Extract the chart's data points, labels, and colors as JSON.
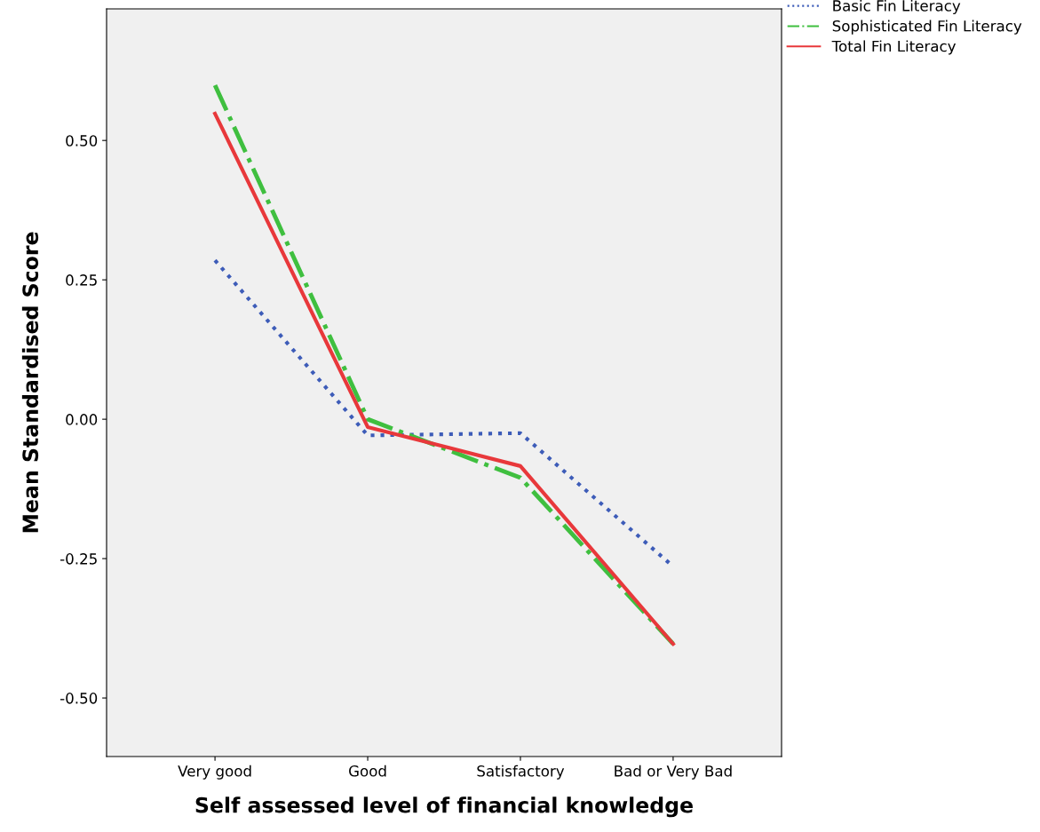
{
  "chart_data": {
    "type": "line",
    "xlabel": "Self assessed level of financial knowledge",
    "ylabel": "Mean Standardised Score",
    "categories": [
      "Very good",
      "Good",
      "Satisfactory",
      "Bad or Very Bad"
    ],
    "series": [
      {
        "name": "Basic Fin Literacy",
        "color": "#3d5cb8",
        "line_style": "dotted",
        "values": [
          0.285,
          -0.029,
          -0.025,
          -0.264
        ]
      },
      {
        "name": "Sophisticated Fin Literacy",
        "color": "#3fbf3f",
        "line_style": "dashdot",
        "values": [
          0.599,
          0.0,
          -0.105,
          -0.403
        ]
      },
      {
        "name": "Total Fin Literacy",
        "color": "#e8383b",
        "line_style": "solid",
        "values": [
          0.548,
          -0.014,
          -0.084,
          -0.403
        ]
      }
    ],
    "ylim": [
      -0.605,
      0.736
    ],
    "yticks": [
      {
        "value": -0.5,
        "label": "-0.50"
      },
      {
        "value": -0.25,
        "label": "-0.25"
      },
      {
        "value": 0,
        "label": "0.00"
      },
      {
        "value": 0.25,
        "label": "0.25"
      },
      {
        "value": 0.5,
        "label": "0.50"
      }
    ],
    "grid": false,
    "legend": "top right",
    "marker": "none"
  }
}
